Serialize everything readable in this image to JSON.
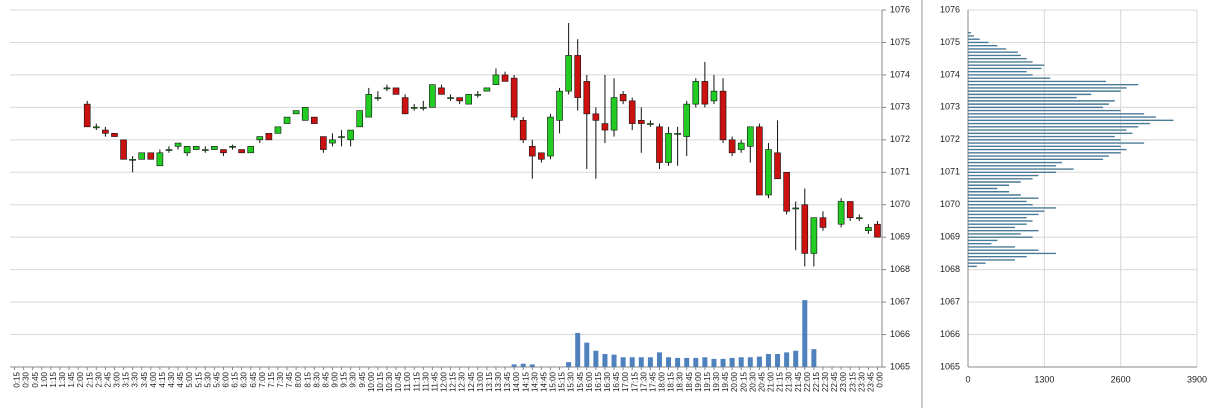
{
  "chart_data": [
    {
      "type": "candlestick",
      "categories": [
        "0:15",
        "0:30",
        "0:45",
        "1:00",
        "1:15",
        "1:30",
        "1:45",
        "2:00",
        "2:15",
        "2:30",
        "2:45",
        "3:00",
        "3:15",
        "3:30",
        "3:45",
        "4:00",
        "4:15",
        "4:30",
        "4:45",
        "5:00",
        "5:15",
        "5:30",
        "5:45",
        "6:00",
        "6:15",
        "6:30",
        "6:45",
        "7:00",
        "7:15",
        "7:30",
        "7:45",
        "8:00",
        "8:15",
        "8:30",
        "8:45",
        "9:00",
        "9:15",
        "9:30",
        "9:45",
        "10:00",
        "10:15",
        "10:30",
        "10:45",
        "11:00",
        "11:15",
        "11:30",
        "11:45",
        "12:00",
        "12:15",
        "12:30",
        "12:45",
        "13:00",
        "13:15",
        "13:30",
        "13:45",
        "14:00",
        "14:15",
        "14:30",
        "14:45",
        "15:00",
        "15:15",
        "15:30",
        "15:45",
        "16:00",
        "16:15",
        "16:30",
        "16:45",
        "17:00",
        "17:15",
        "17:30",
        "17:45",
        "18:00",
        "18:15",
        "18:30",
        "18:45",
        "19:00",
        "19:15",
        "19:30",
        "19:45",
        "20:00",
        "20:15",
        "20:30",
        "20:45",
        "21:00",
        "21:15",
        "21:30",
        "21:45",
        "22:00",
        "22:15",
        "22:30",
        "22:45",
        "23:00",
        "23:15",
        "23:30",
        "23:45",
        "0:00"
      ],
      "open": [
        null,
        null,
        null,
        null,
        null,
        null,
        null,
        null,
        1073.1,
        1072.4,
        1072.3,
        1072.2,
        1072.0,
        1071.4,
        1071.4,
        1071.6,
        1071.2,
        1071.7,
        1071.8,
        1071.6,
        1071.7,
        1071.7,
        1071.7,
        1071.7,
        1071.8,
        1071.7,
        1071.6,
        1072.0,
        1072.2,
        1072.2,
        1072.5,
        1072.8,
        1072.6,
        1072.7,
        1072.1,
        1071.9,
        1072.1,
        1072.0,
        1072.4,
        1072.7,
        1073.3,
        1073.6,
        1073.6,
        1073.3,
        1073.0,
        1073.0,
        1073.0,
        1073.6,
        1073.3,
        1073.3,
        1073.1,
        1073.4,
        1073.5,
        1073.7,
        1074.0,
        1073.9,
        1072.6,
        1071.8,
        1071.6,
        1071.5,
        1072.6,
        1073.5,
        1074.6,
        1073.8,
        1072.8,
        1072.5,
        1072.3,
        1073.4,
        1073.2,
        1072.6,
        1072.5,
        1072.4,
        1071.3,
        1072.2,
        1072.1,
        1073.1,
        1073.8,
        1073.2,
        1073.5,
        1072.0,
        1071.7,
        1071.8,
        1072.4,
        1070.3,
        1071.6,
        1071.0,
        1069.9,
        1070.0,
        1068.5,
        1069.6,
        null,
        1069.4,
        1070.1,
        1069.6,
        1069.2,
        1069.4
      ],
      "high": [
        null,
        null,
        null,
        null,
        null,
        null,
        null,
        null,
        1073.2,
        1072.5,
        1072.4,
        1072.2,
        1072.0,
        1071.5,
        1071.6,
        1071.6,
        1071.7,
        1071.8,
        1071.9,
        1071.8,
        1071.8,
        1071.8,
        1071.8,
        1071.7,
        1071.85,
        1071.7,
        1071.8,
        1072.1,
        1072.2,
        1072.4,
        1072.7,
        1072.9,
        1073.0,
        1072.7,
        1072.1,
        1072.2,
        1072.3,
        1072.3,
        1072.9,
        1073.6,
        1073.5,
        1073.7,
        1073.6,
        1073.4,
        1073.1,
        1073.2,
        1073.7,
        1073.7,
        1073.4,
        1073.3,
        1073.4,
        1073.5,
        1073.6,
        1074.2,
        1074.1,
        1074.0,
        1072.7,
        1072.0,
        1071.6,
        1072.8,
        1073.6,
        1075.6,
        1075.1,
        1074.0,
        1073.0,
        1074.0,
        1073.9,
        1073.5,
        1073.3,
        1073.0,
        1072.6,
        1072.5,
        1072.4,
        1072.4,
        1073.2,
        1073.9,
        1074.4,
        1074.0,
        1073.9,
        1072.1,
        1072.0,
        1072.4,
        1072.5,
        1071.9,
        1072.6,
        1071.0,
        1070.1,
        1070.5,
        1069.6,
        1069.8,
        null,
        1070.2,
        1070.1,
        1069.7,
        1069.4,
        1069.5
      ],
      "low": [
        null,
        null,
        null,
        null,
        null,
        null,
        null,
        null,
        1072.4,
        1072.3,
        1072.1,
        1072.1,
        1071.4,
        1071.0,
        1071.4,
        1071.4,
        1071.2,
        1071.6,
        1071.7,
        1071.5,
        1071.7,
        1071.6,
        1071.7,
        1071.5,
        1071.7,
        1071.6,
        1071.6,
        1071.9,
        1072.0,
        1072.2,
        1072.5,
        1072.8,
        1072.6,
        1072.5,
        1071.6,
        1071.8,
        1071.8,
        1071.8,
        1072.4,
        1072.7,
        1073.2,
        1073.5,
        1073.4,
        1072.8,
        1072.9,
        1072.9,
        1073.0,
        1073.4,
        1073.2,
        1073.1,
        1073.1,
        1073.3,
        1073.5,
        1073.7,
        1073.8,
        1072.6,
        1071.9,
        1070.8,
        1071.3,
        1071.4,
        1072.2,
        1073.4,
        1072.9,
        1071.1,
        1070.8,
        1071.9,
        1072.1,
        1073.1,
        1072.3,
        1071.6,
        1072.4,
        1071.1,
        1071.2,
        1071.2,
        1071.5,
        1073.0,
        1073.0,
        1073.1,
        1071.9,
        1071.5,
        1071.6,
        1071.3,
        1070.3,
        1070.2,
        1070.8,
        1069.7,
        1068.6,
        1068.1,
        1068.1,
        1069.2,
        null,
        1069.3,
        1069.5,
        1069.5,
        1069.1,
        1069.0
      ],
      "close": [
        null,
        null,
        null,
        null,
        null,
        null,
        null,
        null,
        1072.4,
        1072.4,
        1072.2,
        1072.1,
        1071.4,
        1071.4,
        1071.6,
        1071.4,
        1071.6,
        1071.7,
        1071.9,
        1071.8,
        1071.8,
        1071.7,
        1071.8,
        1071.6,
        1071.8,
        1071.6,
        1071.8,
        1072.1,
        1072.0,
        1072.4,
        1072.7,
        1072.9,
        1073.0,
        1072.5,
        1071.7,
        1072.0,
        1072.1,
        1072.3,
        1072.9,
        1073.4,
        1073.3,
        1073.6,
        1073.4,
        1072.8,
        1073.0,
        1073.0,
        1073.7,
        1073.4,
        1073.3,
        1073.2,
        1073.4,
        1073.4,
        1073.6,
        1074.0,
        1073.8,
        1072.7,
        1072.0,
        1071.5,
        1071.4,
        1072.7,
        1073.5,
        1074.6,
        1073.3,
        1072.8,
        1072.6,
        1072.3,
        1073.3,
        1073.2,
        1072.5,
        1072.5,
        1072.5,
        1071.3,
        1072.2,
        1072.2,
        1073.1,
        1073.8,
        1073.1,
        1073.5,
        1072.0,
        1071.6,
        1071.9,
        1072.4,
        1070.3,
        1071.7,
        1070.8,
        1069.8,
        1069.9,
        1068.5,
        1069.6,
        1069.3,
        null,
        1070.1,
        1069.6,
        1069.6,
        1069.3,
        1069.0
      ],
      "volume": [
        null,
        null,
        null,
        null,
        null,
        null,
        null,
        null,
        null,
        null,
        null,
        null,
        null,
        null,
        null,
        null,
        null,
        null,
        null,
        null,
        null,
        null,
        null,
        null,
        null,
        null,
        null,
        null,
        null,
        null,
        null,
        null,
        null,
        null,
        null,
        null,
        null,
        null,
        null,
        null,
        null,
        null,
        null,
        null,
        null,
        null,
        null,
        null,
        null,
        null,
        null,
        null,
        null,
        null,
        null,
        1065.08,
        1065.1,
        1065.08,
        null,
        null,
        null,
        1065.15,
        1066.05,
        1065.75,
        1065.5,
        1065.4,
        1065.38,
        1065.3,
        1065.3,
        1065.3,
        1065.3,
        1065.45,
        1065.3,
        1065.28,
        1065.28,
        1065.28,
        1065.3,
        1065.25,
        1065.25,
        1065.28,
        1065.3,
        1065.3,
        1065.32,
        1065.4,
        1065.4,
        1065.45,
        1065.5,
        1067.06,
        1065.55,
        null,
        null,
        null,
        null,
        null,
        null,
        null
      ],
      "up_color": "#22cc22",
      "down_color": "#cc1111",
      "volume_color": "#4f81bd",
      "ylim": [
        1065,
        1076
      ],
      "yticks": [
        1065,
        1066,
        1067,
        1068,
        1069,
        1070,
        1071,
        1072,
        1073,
        1074,
        1075,
        1076
      ],
      "grid": true
    },
    {
      "type": "barh",
      "prices": [
        1075.3,
        1075.2,
        1075.1,
        1075.0,
        1074.9,
        1074.8,
        1074.7,
        1074.6,
        1074.5,
        1074.4,
        1074.3,
        1074.2,
        1074.1,
        1074.0,
        1073.9,
        1073.8,
        1073.7,
        1073.6,
        1073.5,
        1073.4,
        1073.3,
        1073.2,
        1073.1,
        1073.0,
        1072.9,
        1072.8,
        1072.7,
        1072.6,
        1072.5,
        1072.4,
        1072.3,
        1072.2,
        1072.1,
        1072.0,
        1071.9,
        1071.8,
        1071.7,
        1071.6,
        1071.5,
        1071.4,
        1071.3,
        1071.2,
        1071.1,
        1071.0,
        1070.9,
        1070.8,
        1070.7,
        1070.6,
        1070.5,
        1070.4,
        1070.3,
        1070.2,
        1070.1,
        1070.0,
        1069.9,
        1069.8,
        1069.7,
        1069.6,
        1069.5,
        1069.4,
        1069.3,
        1069.2,
        1069.1,
        1069.0,
        1068.9,
        1068.8,
        1068.7,
        1068.6,
        1068.5,
        1068.4,
        1068.3,
        1068.2,
        1068.1
      ],
      "values": [
        50,
        100,
        200,
        350,
        500,
        650,
        850,
        900,
        1000,
        1100,
        1300,
        1250,
        1000,
        1100,
        1400,
        2350,
        2900,
        2700,
        2600,
        2100,
        1850,
        2500,
        2400,
        2300,
        2600,
        3000,
        3200,
        3500,
        3100,
        2900,
        2700,
        2800,
        2500,
        2600,
        3000,
        2600,
        2700,
        2600,
        2400,
        2300,
        1600,
        1500,
        1800,
        1500,
        1200,
        1100,
        900,
        700,
        500,
        700,
        900,
        1200,
        1000,
        1100,
        1500,
        1300,
        1200,
        1000,
        1100,
        1000,
        800,
        1200,
        900,
        1100,
        500,
        400,
        800,
        1200,
        1500,
        1000,
        800,
        300,
        150
      ],
      "color": "#4a7a96",
      "xlim": [
        0,
        3900
      ],
      "xticks": [
        0,
        1300,
        2600,
        3900
      ],
      "ylim": [
        1065,
        1076
      ],
      "yticks": [
        1065,
        1066,
        1067,
        1068,
        1069,
        1070,
        1071,
        1072,
        1073,
        1074,
        1075,
        1076
      ],
      "grid": true
    }
  ]
}
